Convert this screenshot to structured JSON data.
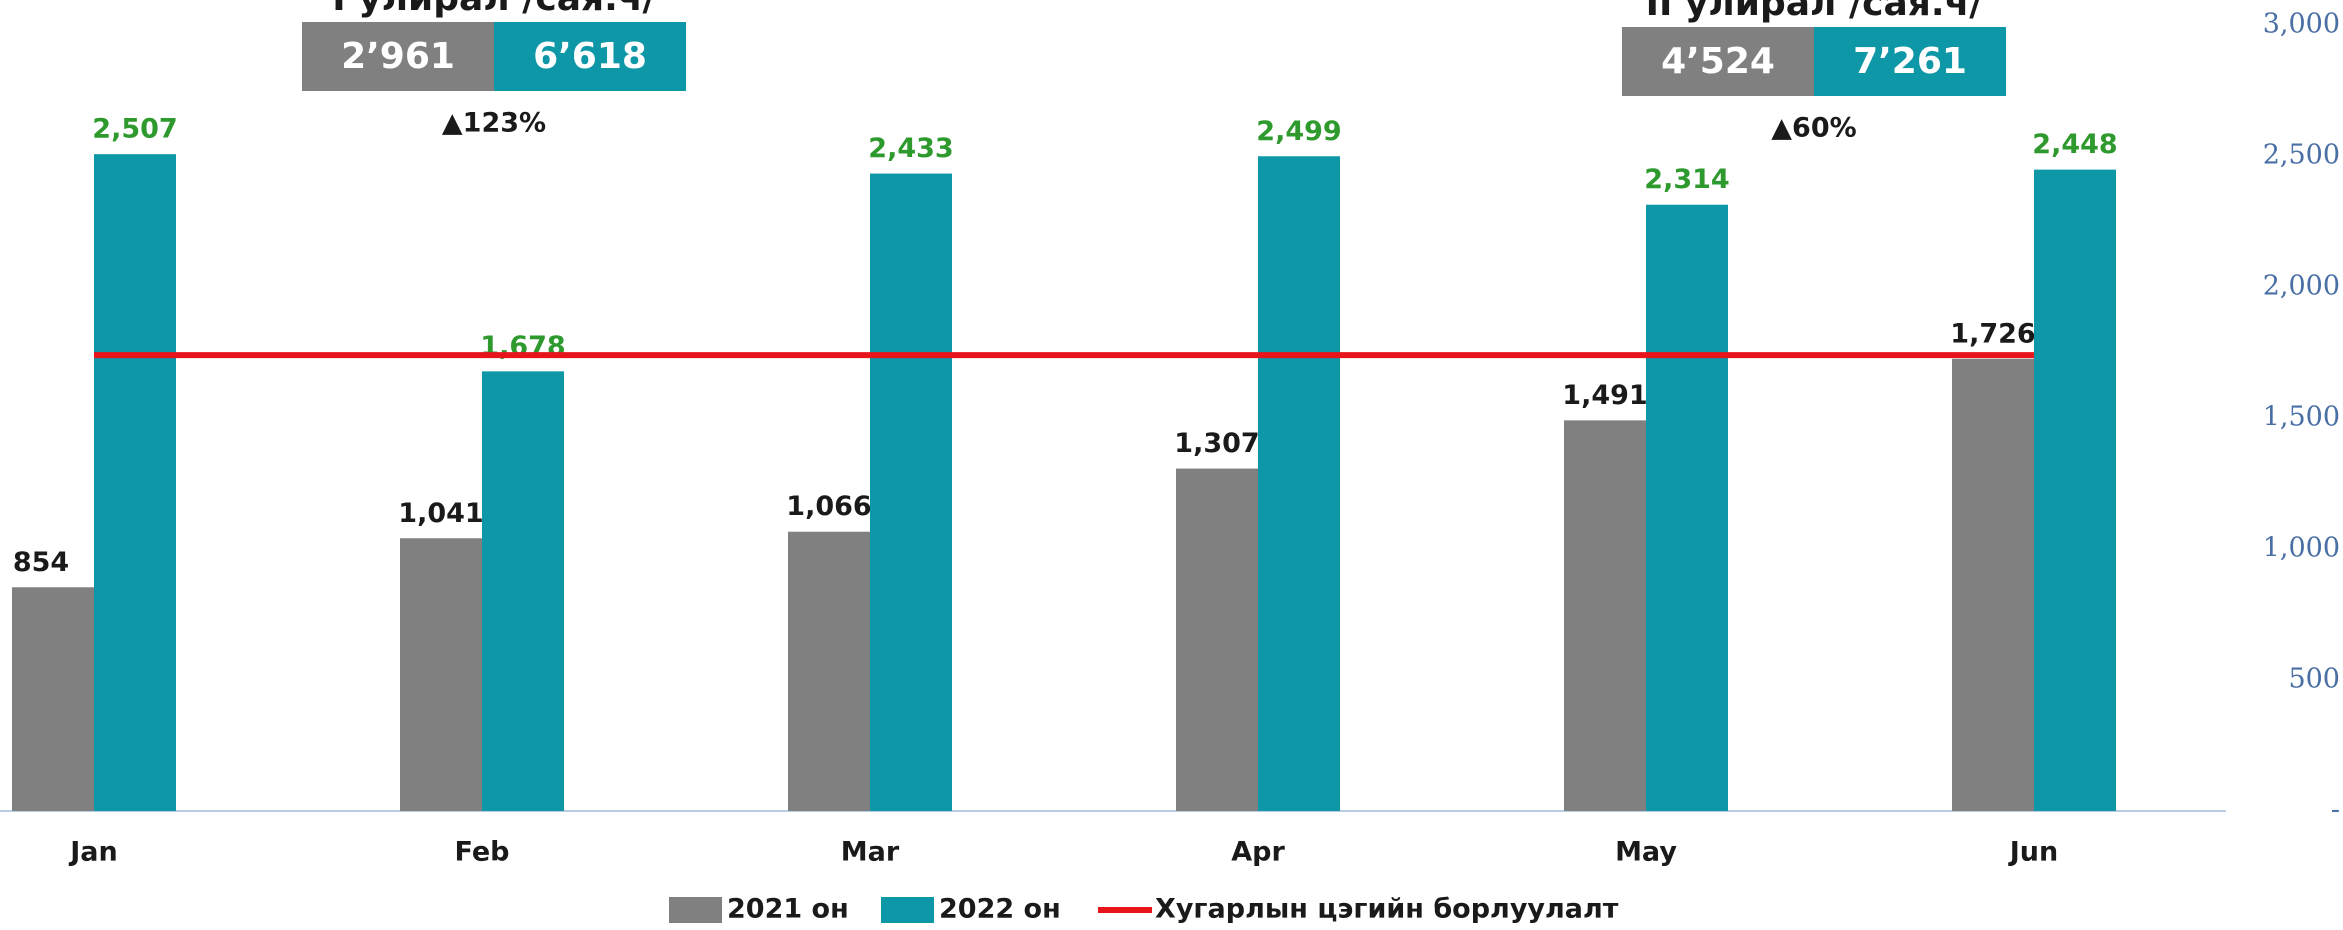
{
  "chart_data": {
    "type": "bar",
    "categories": [
      "Jan",
      "Feb",
      "Mar",
      "Apr",
      "May",
      "Jun"
    ],
    "series": [
      {
        "name": "2021 он",
        "color": "#808080",
        "label_color": "#1a1a1a",
        "values": [
          854,
          1041,
          1066,
          1307,
          1491,
          1726
        ],
        "value_labels": [
          "854",
          "1,041",
          "1,066",
          "1,307",
          "1,491",
          "1,726"
        ]
      },
      {
        "name": "2022 он",
        "color": "#0e97a7",
        "label_color": "#2e9a2e",
        "values": [
          2507,
          1678,
          2433,
          2499,
          2314,
          2448
        ],
        "value_labels": [
          "2,507",
          "1,678",
          "2,433",
          "2,499",
          "2,314",
          "2,448"
        ]
      }
    ],
    "target": {
      "name": "Хугарлын цэгийн борлуулалт",
      "value": 1740,
      "color": "#e8141c"
    },
    "ylim": [
      0,
      3000
    ],
    "yticks": [
      {
        "value": 0,
        "label": "-"
      },
      500,
      {
        "value": 1000,
        "label": "1,000"
      },
      {
        "value": 1500,
        "label": "1,500"
      },
      {
        "value": 2000,
        "label": "2,000"
      },
      {
        "value": 2500,
        "label": "2,500"
      },
      {
        "value": 3000,
        "label": "3,000"
      }
    ],
    "y_axis_side": "right",
    "summaries": [
      {
        "title": "I улирал /сая.ч/",
        "v2021": "2’961",
        "v2022": "6’618",
        "change": "▲123%"
      },
      {
        "title": "II улирал /сая.ч/",
        "v2021": "4’524",
        "v2022": "7’261",
        "change": "▲60%"
      }
    ]
  }
}
